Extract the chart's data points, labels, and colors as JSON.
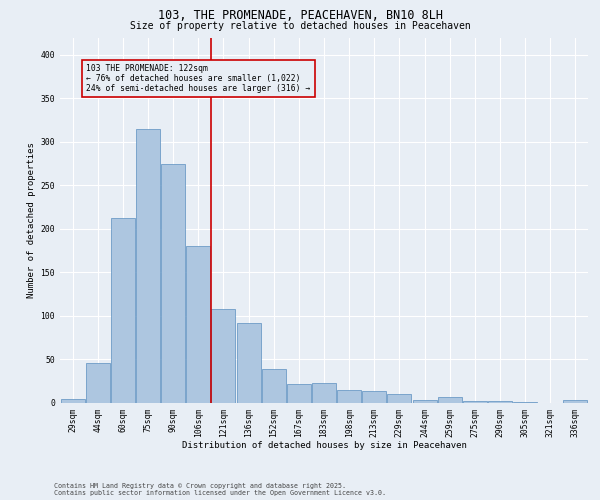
{
  "title_line1": "103, THE PROMENADE, PEACEHAVEN, BN10 8LH",
  "title_line2": "Size of property relative to detached houses in Peacehaven",
  "xlabel": "Distribution of detached houses by size in Peacehaven",
  "ylabel": "Number of detached properties",
  "categories": [
    "29sqm",
    "44sqm",
    "60sqm",
    "75sqm",
    "90sqm",
    "106sqm",
    "121sqm",
    "136sqm",
    "152sqm",
    "167sqm",
    "183sqm",
    "198sqm",
    "213sqm",
    "229sqm",
    "244sqm",
    "259sqm",
    "275sqm",
    "290sqm",
    "305sqm",
    "321sqm",
    "336sqm"
  ],
  "values": [
    4,
    45,
    212,
    315,
    274,
    180,
    108,
    91,
    39,
    21,
    22,
    14,
    13,
    10,
    3,
    6,
    2,
    2,
    1,
    0,
    3
  ],
  "bar_color": "#adc6e0",
  "bar_edge_color": "#5a8fc0",
  "vline_index": 6,
  "vline_color": "#cc0000",
  "annotation_text": "103 THE PROMENADE: 122sqm\n← 76% of detached houses are smaller (1,022)\n24% of semi-detached houses are larger (316) →",
  "annotation_box_color": "#cc0000",
  "background_color": "#e8eef5",
  "ylim": [
    0,
    420
  ],
  "yticks": [
    0,
    50,
    100,
    150,
    200,
    250,
    300,
    350,
    400
  ],
  "footer_line1": "Contains HM Land Registry data © Crown copyright and database right 2025.",
  "footer_line2": "Contains public sector information licensed under the Open Government Licence v3.0.",
  "title_fontsize": 8.5,
  "subtitle_fontsize": 7.0,
  "tick_fontsize": 5.8,
  "axis_label_fontsize": 6.5,
  "annotation_fontsize": 5.8,
  "footer_fontsize": 4.8
}
